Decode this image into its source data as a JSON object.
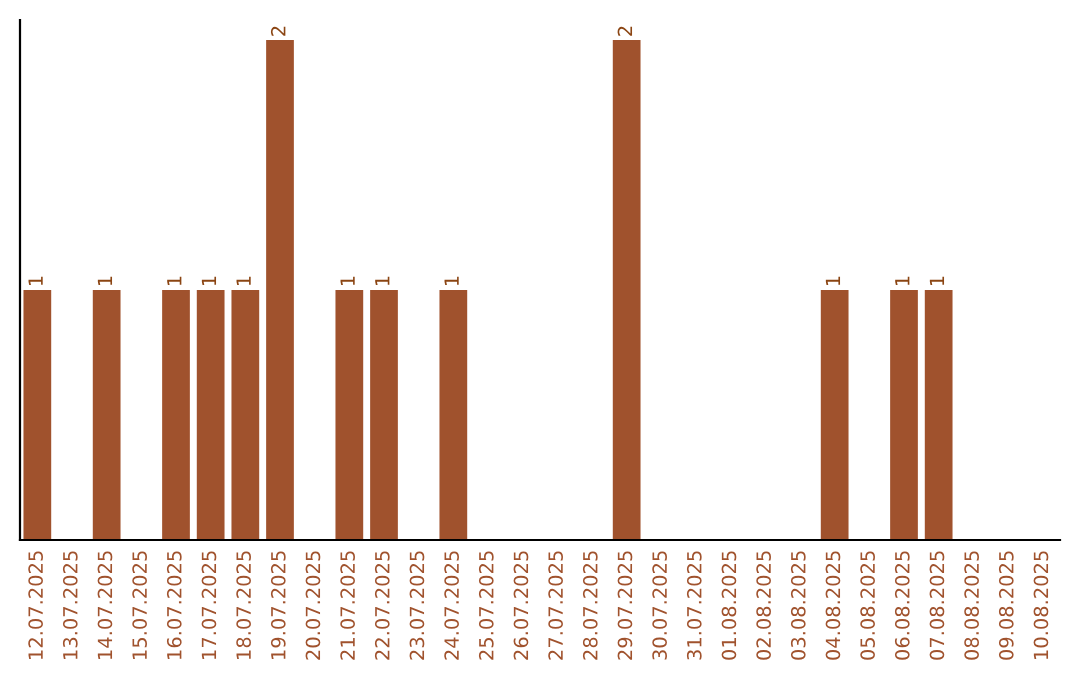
{
  "chart_data": {
    "type": "bar",
    "categories": [
      "12.07.2025",
      "13.07.2025",
      "14.07.2025",
      "15.07.2025",
      "16.07.2025",
      "17.07.2025",
      "18.07.2025",
      "19.07.2025",
      "20.07.2025",
      "21.07.2025",
      "22.07.2025",
      "23.07.2025",
      "24.07.2025",
      "25.07.2025",
      "26.07.2025",
      "27.07.2025",
      "28.07.2025",
      "29.07.2025",
      "30.07.2025",
      "31.07.2025",
      "01.08.2025",
      "02.08.2025",
      "03.08.2025",
      "04.08.2025",
      "05.08.2025",
      "06.08.2025",
      "07.08.2025",
      "08.08.2025",
      "09.08.2025",
      "10.08.2025"
    ],
    "values": [
      1,
      0,
      1,
      0,
      1,
      1,
      1,
      2,
      0,
      1,
      1,
      0,
      1,
      0,
      0,
      0,
      0,
      2,
      0,
      0,
      0,
      0,
      0,
      1,
      0,
      1,
      1,
      0,
      0,
      0
    ],
    "value_labels": [
      "1",
      null,
      "1",
      null,
      "1",
      "1",
      "1",
      "2",
      null,
      "1",
      "1",
      null,
      "1",
      null,
      null,
      null,
      null,
      "2",
      null,
      null,
      null,
      null,
      null,
      "1",
      null,
      "1",
      "1",
      null,
      null,
      null
    ],
    "color": "#a0522d",
    "ylim": [
      0,
      2.08
    ],
    "tick_labels": "x",
    "grid": false,
    "legend": false
  }
}
